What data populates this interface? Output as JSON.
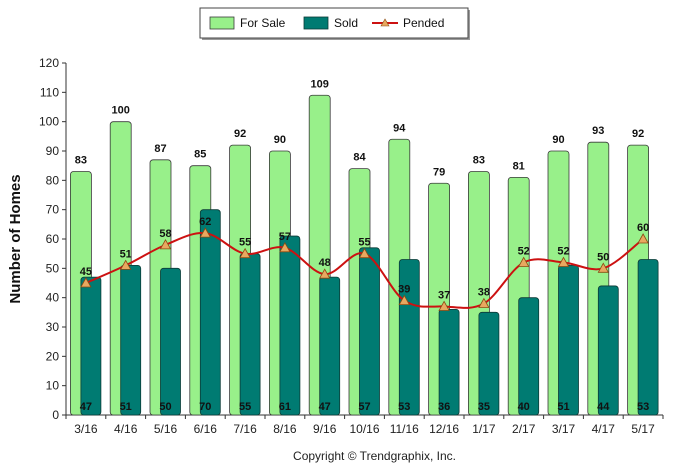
{
  "chart_data": {
    "type": "bar",
    "categories": [
      "3/16",
      "4/16",
      "5/16",
      "6/16",
      "7/16",
      "8/16",
      "9/16",
      "10/16",
      "11/16",
      "12/16",
      "1/17",
      "2/17",
      "3/17",
      "4/17",
      "5/17"
    ],
    "series": [
      {
        "name": "For Sale",
        "type": "bar",
        "color": "#98f08a",
        "values": [
          83,
          100,
          87,
          85,
          92,
          90,
          109,
          84,
          94,
          79,
          83,
          81,
          90,
          93,
          92
        ]
      },
      {
        "name": "Sold",
        "type": "bar",
        "color": "#007b72",
        "values": [
          47,
          51,
          50,
          70,
          55,
          61,
          47,
          57,
          53,
          36,
          35,
          40,
          51,
          44,
          53
        ]
      },
      {
        "name": "Pended",
        "type": "line",
        "color": "#cc1111",
        "marker_color": "#e8a860",
        "values": [
          45,
          51,
          58,
          62,
          55,
          57,
          48,
          55,
          39,
          37,
          38,
          52,
          52,
          50,
          60
        ]
      }
    ],
    "xlabel": "",
    "ylabel": "Number of Homes",
    "ylim": [
      0,
      120
    ],
    "yticks": [
      0,
      10,
      20,
      30,
      40,
      50,
      60,
      70,
      80,
      90,
      100,
      110,
      120
    ],
    "grid": false,
    "legend_position": "top-center",
    "footer": "Copyright © Trendgraphix, Inc."
  }
}
